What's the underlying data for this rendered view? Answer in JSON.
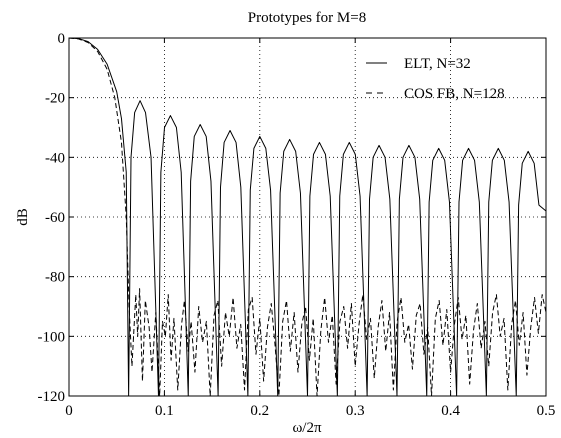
{
  "chart_data": {
    "type": "line",
    "title": "Prototypes for M=8",
    "xlabel": "ω/2π",
    "ylabel": "dB",
    "xlim": [
      0,
      0.5
    ],
    "ylim": [
      -120,
      0
    ],
    "grid": true,
    "grid_style": "dotted",
    "legend_position": "top-right",
    "x_ticks": [
      0,
      0.1,
      0.2,
      0.3,
      0.4,
      0.5
    ],
    "x_tick_labels": [
      "0",
      "0.1",
      "0.2",
      "0.3",
      "0.4",
      "0.5"
    ],
    "y_ticks": [
      0,
      -20,
      -40,
      -60,
      -80,
      -100,
      -120
    ],
    "y_tick_labels": [
      "0",
      "-20",
      "-40",
      "-60",
      "-80",
      "-100",
      "-120"
    ],
    "series": [
      {
        "name": "ELT, N=32",
        "line_style": "solid",
        "color": "#000000",
        "points": [
          [
            0,
            0
          ],
          [
            0.01,
            -0.2
          ],
          [
            0.02,
            -1.2
          ],
          [
            0.03,
            -3.8
          ],
          [
            0.04,
            -8.8
          ],
          [
            0.05,
            -18
          ],
          [
            0.055,
            -27
          ],
          [
            0.06,
            -45
          ],
          [
            0.0625,
            -120
          ],
          [
            0.065,
            -40
          ],
          [
            0.0688,
            -25
          ],
          [
            0.0745,
            -21
          ],
          [
            0.0802,
            -25
          ],
          [
            0.086,
            -40
          ],
          [
            0.0938,
            -120
          ],
          [
            0.0963,
            -45
          ],
          [
            0.1001,
            -30
          ],
          [
            0.1063,
            -26
          ],
          [
            0.1126,
            -30
          ],
          [
            0.1176,
            -45
          ],
          [
            0.125,
            -120
          ],
          [
            0.1275,
            -48
          ],
          [
            0.1313,
            -33
          ],
          [
            0.1375,
            -29
          ],
          [
            0.1438,
            -33
          ],
          [
            0.1488,
            -48
          ],
          [
            0.1563,
            -120
          ],
          [
            0.1588,
            -50
          ],
          [
            0.1626,
            -35
          ],
          [
            0.1688,
            -31
          ],
          [
            0.1751,
            -35
          ],
          [
            0.1801,
            -50
          ],
          [
            0.1875,
            -120
          ],
          [
            0.19,
            -51
          ],
          [
            0.1938,
            -37
          ],
          [
            0.2,
            -33
          ],
          [
            0.2063,
            -37
          ],
          [
            0.2113,
            -51
          ],
          [
            0.2188,
            -120
          ],
          [
            0.2213,
            -52
          ],
          [
            0.2251,
            -38
          ],
          [
            0.2313,
            -34
          ],
          [
            0.2376,
            -38
          ],
          [
            0.2426,
            -52
          ],
          [
            0.25,
            -120
          ],
          [
            0.2525,
            -53
          ],
          [
            0.2563,
            -39
          ],
          [
            0.2625,
            -35
          ],
          [
            0.2688,
            -39
          ],
          [
            0.2738,
            -53
          ],
          [
            0.2813,
            -120
          ],
          [
            0.2838,
            -53
          ],
          [
            0.2876,
            -39
          ],
          [
            0.2938,
            -35
          ],
          [
            0.3001,
            -39
          ],
          [
            0.3051,
            -53
          ],
          [
            0.3125,
            -120
          ],
          [
            0.315,
            -54
          ],
          [
            0.3188,
            -40
          ],
          [
            0.325,
            -36
          ],
          [
            0.3313,
            -40
          ],
          [
            0.3363,
            -54
          ],
          [
            0.3438,
            -120
          ],
          [
            0.3463,
            -54
          ],
          [
            0.3501,
            -40
          ],
          [
            0.3563,
            -36
          ],
          [
            0.3626,
            -40
          ],
          [
            0.3676,
            -54
          ],
          [
            0.375,
            -120
          ],
          [
            0.3775,
            -55
          ],
          [
            0.3813,
            -41
          ],
          [
            0.3875,
            -37
          ],
          [
            0.3938,
            -41
          ],
          [
            0.3988,
            -55
          ],
          [
            0.4063,
            -120
          ],
          [
            0.4088,
            -55
          ],
          [
            0.4126,
            -41
          ],
          [
            0.4188,
            -37
          ],
          [
            0.4251,
            -41
          ],
          [
            0.4301,
            -55
          ],
          [
            0.4375,
            -120
          ],
          [
            0.44,
            -55
          ],
          [
            0.4438,
            -41
          ],
          [
            0.45,
            -37
          ],
          [
            0.4563,
            -41
          ],
          [
            0.4613,
            -55
          ],
          [
            0.4688,
            -120
          ],
          [
            0.4713,
            -56
          ],
          [
            0.4751,
            -42
          ],
          [
            0.4813,
            -38
          ],
          [
            0.4876,
            -42
          ],
          [
            0.4926,
            -56
          ],
          [
            0.5,
            -58
          ]
        ]
      },
      {
        "name": "COS FB, N=128",
        "line_style": "dashed",
        "color": "#000000",
        "points": [
          [
            0,
            0
          ],
          [
            0.01,
            -0.3
          ],
          [
            0.02,
            -1.5
          ],
          [
            0.03,
            -4.5
          ],
          [
            0.04,
            -10.5
          ],
          [
            0.048,
            -20
          ],
          [
            0.055,
            -35
          ],
          [
            0.06,
            -60
          ],
          [
            0.063,
            -90
          ],
          [
            0.066,
            -110
          ],
          [
            0.07,
            -86
          ],
          [
            0.072,
            -100
          ],
          [
            0.074,
            -84
          ],
          [
            0.077,
            -115
          ],
          [
            0.08,
            -88
          ],
          [
            0.084,
            -97
          ],
          [
            0.087,
            -112
          ],
          [
            0.091,
            -92
          ],
          [
            0.095,
            -120
          ],
          [
            0.098,
            -95
          ],
          [
            0.101,
            -100
          ],
          [
            0.104,
            -86
          ],
          [
            0.107,
            -108
          ],
          [
            0.11,
            -94
          ],
          [
            0.114,
            -118
          ],
          [
            0.118,
            -96
          ],
          [
            0.121,
            -88
          ],
          [
            0.125,
            -105
          ],
          [
            0.128,
            -95
          ],
          [
            0.132,
            -112
          ],
          [
            0.136,
            -90
          ],
          [
            0.14,
            -102
          ],
          [
            0.144,
            -95
          ],
          [
            0.148,
            -120
          ],
          [
            0.152,
            -93
          ],
          [
            0.156,
            -88
          ],
          [
            0.16,
            -110
          ],
          [
            0.164,
            -92
          ],
          [
            0.168,
            -100
          ],
          [
            0.172,
            -87
          ],
          [
            0.176,
            -104
          ],
          [
            0.18,
            -96
          ],
          [
            0.184,
            -118
          ],
          [
            0.188,
            -91
          ],
          [
            0.192,
            -87
          ],
          [
            0.196,
            -106
          ],
          [
            0.2,
            -94
          ],
          [
            0.204,
            -115
          ],
          [
            0.208,
            -97
          ],
          [
            0.212,
            -89
          ],
          [
            0.216,
            -103
          ],
          [
            0.22,
            -120
          ],
          [
            0.224,
            -95
          ],
          [
            0.228,
            -88
          ],
          [
            0.232,
            -105
          ],
          [
            0.236,
            -92
          ],
          [
            0.24,
            -112
          ],
          [
            0.244,
            -96
          ],
          [
            0.248,
            -90
          ],
          [
            0.252,
            -108
          ],
          [
            0.256,
            -94
          ],
          [
            0.26,
            -120
          ],
          [
            0.264,
            -98
          ],
          [
            0.268,
            -87
          ],
          [
            0.272,
            -102
          ],
          [
            0.276,
            -93
          ],
          [
            0.28,
            -116
          ],
          [
            0.284,
            -95
          ],
          [
            0.288,
            -90
          ],
          [
            0.292,
            -104
          ],
          [
            0.296,
            -89
          ],
          [
            0.3,
            -110
          ],
          [
            0.304,
            -96
          ],
          [
            0.308,
            -86
          ],
          [
            0.312,
            -101
          ],
          [
            0.316,
            -94
          ],
          [
            0.32,
            -114
          ],
          [
            0.324,
            -97
          ],
          [
            0.328,
            -88
          ],
          [
            0.332,
            -105
          ],
          [
            0.336,
            -92
          ],
          [
            0.34,
            -118
          ],
          [
            0.344,
            -95
          ],
          [
            0.348,
            -87
          ],
          [
            0.352,
            -102
          ],
          [
            0.356,
            -96
          ],
          [
            0.36,
            -111
          ],
          [
            0.364,
            -93
          ],
          [
            0.368,
            -89
          ],
          [
            0.372,
            -106
          ],
          [
            0.376,
            -97
          ],
          [
            0.38,
            -120
          ],
          [
            0.384,
            -94
          ],
          [
            0.388,
            -88
          ],
          [
            0.392,
            -103
          ],
          [
            0.396,
            -91
          ],
          [
            0.4,
            -112
          ],
          [
            0.404,
            -96
          ],
          [
            0.408,
            -87
          ],
          [
            0.412,
            -101
          ],
          [
            0.416,
            -93
          ],
          [
            0.42,
            -116
          ],
          [
            0.424,
            -98
          ],
          [
            0.428,
            -89
          ],
          [
            0.432,
            -104
          ],
          [
            0.436,
            -95
          ],
          [
            0.44,
            -110
          ],
          [
            0.444,
            -92
          ],
          [
            0.448,
            -86
          ],
          [
            0.452,
            -100
          ],
          [
            0.456,
            -94
          ],
          [
            0.46,
            -118
          ],
          [
            0.464,
            -96
          ],
          [
            0.468,
            -88
          ],
          [
            0.472,
            -103
          ],
          [
            0.476,
            -92
          ],
          [
            0.48,
            -113
          ],
          [
            0.484,
            -97
          ],
          [
            0.488,
            -87
          ],
          [
            0.492,
            -99
          ],
          [
            0.496,
            -86
          ],
          [
            0.5,
            -92
          ]
        ]
      }
    ]
  }
}
